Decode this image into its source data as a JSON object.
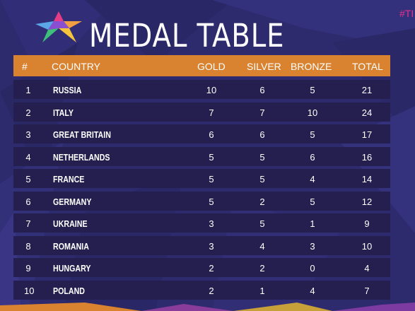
{
  "title": "MEDAL TABLE",
  "hashtag": "#TI",
  "colors": {
    "background": "#2d2a6e",
    "header": "#d9822f",
    "row": "#241f4f",
    "hashtag": "#e8308c"
  },
  "header": {
    "rank": "#",
    "country": "COUNTRY",
    "gold": "GOLD",
    "silver": "SILVER",
    "bronze": "BRONZE",
    "total": "TOTAL"
  },
  "rows": [
    {
      "rank": "1",
      "country": "RUSSIA",
      "gold": "10",
      "silver": "6",
      "bronze": "5",
      "total": "21"
    },
    {
      "rank": "2",
      "country": "ITALY",
      "gold": "7",
      "silver": "7",
      "bronze": "10",
      "total": "24"
    },
    {
      "rank": "3",
      "country": "GREAT BRITAIN",
      "gold": "6",
      "silver": "6",
      "bronze": "5",
      "total": "17"
    },
    {
      "rank": "4",
      "country": "NETHERLANDS",
      "gold": "5",
      "silver": "5",
      "bronze": "6",
      "total": "16"
    },
    {
      "rank": "5",
      "country": "FRANCE",
      "gold": "5",
      "silver": "5",
      "bronze": "4",
      "total": "14"
    },
    {
      "rank": "6",
      "country": "GERMANY",
      "gold": "5",
      "silver": "2",
      "bronze": "5",
      "total": "12"
    },
    {
      "rank": "7",
      "country": "UKRAINE",
      "gold": "3",
      "silver": "5",
      "bronze": "1",
      "total": "9"
    },
    {
      "rank": "8",
      "country": "ROMANIA",
      "gold": "3",
      "silver": "4",
      "bronze": "3",
      "total": "10"
    },
    {
      "rank": "9",
      "country": "HUNGARY",
      "gold": "2",
      "silver": "2",
      "bronze": "0",
      "total": "4"
    },
    {
      "rank": "10",
      "country": "POLAND",
      "gold": "2",
      "silver": "1",
      "bronze": "4",
      "total": "7"
    }
  ]
}
